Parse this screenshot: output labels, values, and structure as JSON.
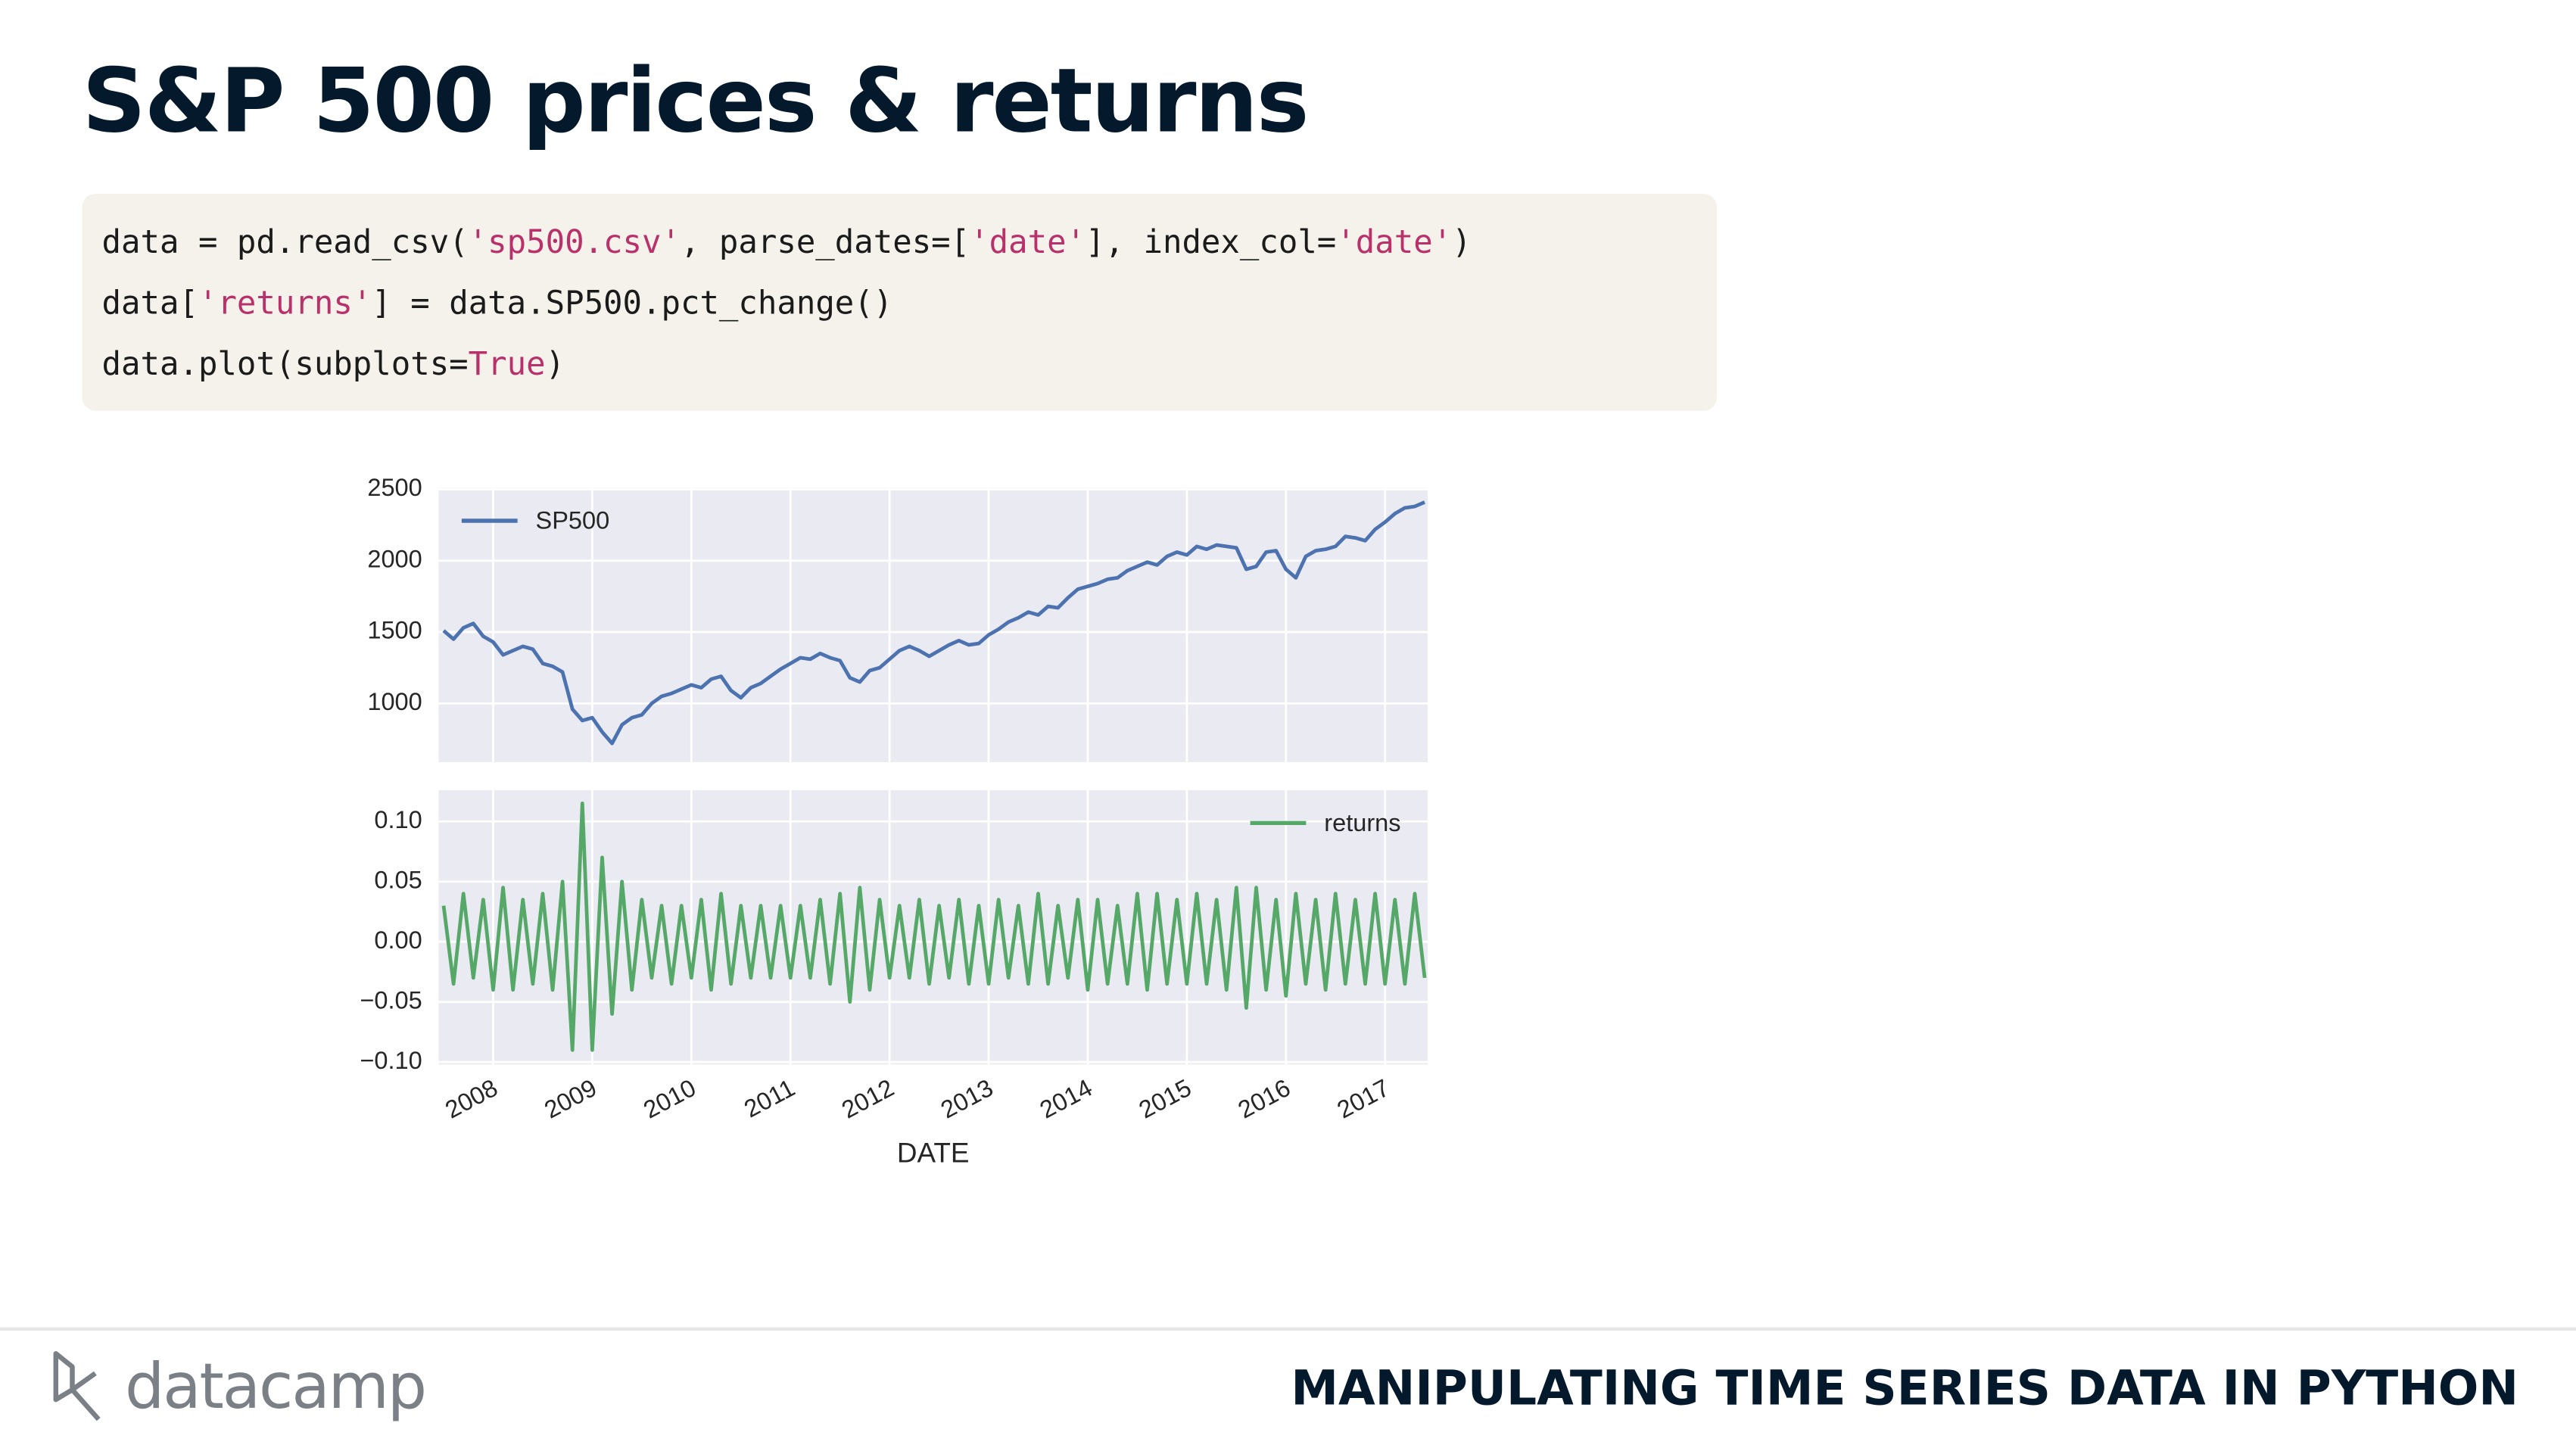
{
  "header": {
    "title": "S&P 500 prices & returns"
  },
  "code": {
    "lines": [
      [
        {
          "text": "data = pd.read_csv(",
          "color": "#1b1b1b"
        },
        {
          "text": "'sp500.csv'",
          "color": "#b8316a"
        },
        {
          "text": ", parse_dates=[",
          "color": "#1b1b1b"
        },
        {
          "text": "'date'",
          "color": "#b8316a"
        },
        {
          "text": "], index_col=",
          "color": "#1b1b1b"
        },
        {
          "text": "'date'",
          "color": "#b8316a"
        },
        {
          "text": ")",
          "color": "#1b1b1b"
        }
      ],
      [
        {
          "text": "data[",
          "color": "#1b1b1b"
        },
        {
          "text": "'returns'",
          "color": "#b8316a"
        },
        {
          "text": "] = data.SP500.pct_change()",
          "color": "#1b1b1b"
        }
      ],
      [
        {
          "text": "data.plot(subplots=",
          "color": "#1b1b1b"
        },
        {
          "text": "True",
          "color": "#b8316a"
        },
        {
          "text": ")",
          "color": "#1b1b1b"
        }
      ]
    ]
  },
  "chart_data": [
    {
      "type": "line",
      "legend": "upper left",
      "grid": true,
      "background": "#eaeaf2",
      "xtick_labels": false,
      "xlim": [
        2007.45,
        2017.43
      ],
      "xticks": [
        2008,
        2009,
        2010,
        2011,
        2012,
        2013,
        2014,
        2015,
        2016,
        2017
      ],
      "ylim": [
        588,
        2510
      ],
      "yticks": [
        1000,
        1500,
        2000,
        2500
      ],
      "x": [
        2007.5,
        2007.6,
        2007.7,
        2007.8,
        2007.9,
        2008.0,
        2008.1,
        2008.2,
        2008.3,
        2008.4,
        2008.5,
        2008.6,
        2008.7,
        2008.8,
        2008.9,
        2009.0,
        2009.1,
        2009.2,
        2009.3,
        2009.4,
        2009.5,
        2009.6,
        2009.7,
        2009.8,
        2009.9,
        2010.0,
        2010.1,
        2010.2,
        2010.3,
        2010.4,
        2010.5,
        2010.6,
        2010.7,
        2010.8,
        2010.9,
        2011.0,
        2011.1,
        2011.2,
        2011.3,
        2011.4,
        2011.5,
        2011.6,
        2011.7,
        2011.8,
        2011.9,
        2012.0,
        2012.1,
        2012.2,
        2012.3,
        2012.4,
        2012.5,
        2012.6,
        2012.7,
        2012.8,
        2012.9,
        2013.0,
        2013.1,
        2013.2,
        2013.3,
        2013.4,
        2013.5,
        2013.6,
        2013.7,
        2013.8,
        2013.9,
        2014.0,
        2014.1,
        2014.2,
        2014.3,
        2014.4,
        2014.5,
        2014.6,
        2014.7,
        2014.8,
        2014.9,
        2015.0,
        2015.1,
        2015.2,
        2015.3,
        2015.4,
        2015.5,
        2015.6,
        2015.7,
        2015.8,
        2015.9,
        2016.0,
        2016.1,
        2016.2,
        2016.3,
        2016.4,
        2016.5,
        2016.6,
        2016.7,
        2016.8,
        2016.9,
        2017.0,
        2017.1,
        2017.2,
        2017.3,
        2017.4
      ],
      "series": [
        {
          "name": "SP500",
          "color": "#4c72b0",
          "values": [
            1510,
            1450,
            1530,
            1560,
            1470,
            1430,
            1340,
            1370,
            1400,
            1380,
            1280,
            1260,
            1220,
            960,
            880,
            900,
            800,
            720,
            850,
            900,
            920,
            1000,
            1050,
            1070,
            1100,
            1130,
            1110,
            1170,
            1190,
            1090,
            1040,
            1110,
            1140,
            1190,
            1240,
            1280,
            1320,
            1310,
            1350,
            1320,
            1300,
            1180,
            1150,
            1230,
            1250,
            1310,
            1370,
            1400,
            1370,
            1330,
            1370,
            1410,
            1440,
            1410,
            1420,
            1480,
            1520,
            1570,
            1600,
            1640,
            1620,
            1680,
            1670,
            1740,
            1800,
            1820,
            1840,
            1870,
            1880,
            1930,
            1960,
            1990,
            1970,
            2030,
            2060,
            2040,
            2100,
            2080,
            2110,
            2100,
            2090,
            1940,
            1960,
            2060,
            2070,
            1940,
            1880,
            2030,
            2070,
            2080,
            2100,
            2170,
            2160,
            2140,
            2220,
            2270,
            2330,
            2370,
            2380,
            2410
          ]
        }
      ]
    },
    {
      "type": "line",
      "legend": "upper right",
      "grid": true,
      "background": "#eaeaf2",
      "xtick_labels": true,
      "xlabel": "DATE",
      "xlim": [
        2007.45,
        2017.43
      ],
      "xticks": [
        2008,
        2009,
        2010,
        2011,
        2012,
        2013,
        2014,
        2015,
        2016,
        2017
      ],
      "ylim": [
        -0.102,
        0.126
      ],
      "yticks": [
        {
          "value": -0.1,
          "label": "−0.10"
        },
        {
          "value": -0.05,
          "label": "−0.05"
        },
        {
          "value": 0,
          "label": "0.00"
        },
        {
          "value": 0.05,
          "label": "0.05"
        },
        {
          "value": 0.1,
          "label": "0.10"
        }
      ],
      "x": [
        2007.5,
        2007.6,
        2007.7,
        2007.8,
        2007.9,
        2008.0,
        2008.1,
        2008.2,
        2008.3,
        2008.4,
        2008.5,
        2008.6,
        2008.7,
        2008.8,
        2008.9,
        2009.0,
        2009.1,
        2009.2,
        2009.3,
        2009.4,
        2009.5,
        2009.6,
        2009.7,
        2009.8,
        2009.9,
        2010.0,
        2010.1,
        2010.2,
        2010.3,
        2010.4,
        2010.5,
        2010.6,
        2010.7,
        2010.8,
        2010.9,
        2011.0,
        2011.1,
        2011.2,
        2011.3,
        2011.4,
        2011.5,
        2011.6,
        2011.7,
        2011.8,
        2011.9,
        2012.0,
        2012.1,
        2012.2,
        2012.3,
        2012.4,
        2012.5,
        2012.6,
        2012.7,
        2012.8,
        2012.9,
        2013.0,
        2013.1,
        2013.2,
        2013.3,
        2013.4,
        2013.5,
        2013.6,
        2013.7,
        2013.8,
        2013.9,
        2014.0,
        2014.1,
        2014.2,
        2014.3,
        2014.4,
        2014.5,
        2014.6,
        2014.7,
        2014.8,
        2014.9,
        2015.0,
        2015.1,
        2015.2,
        2015.3,
        2015.4,
        2015.5,
        2015.6,
        2015.7,
        2015.8,
        2015.9,
        2016.0,
        2016.1,
        2016.2,
        2016.3,
        2016.4,
        2016.5,
        2016.6,
        2016.7,
        2016.8,
        2016.9,
        2017.0,
        2017.1,
        2017.2,
        2017.3,
        2017.4
      ],
      "series": [
        {
          "name": "returns",
          "color": "#55a868",
          "values": [
            0.03,
            -0.035,
            0.04,
            -0.03,
            0.035,
            -0.04,
            0.045,
            -0.04,
            0.035,
            -0.035,
            0.04,
            -0.04,
            0.05,
            -0.09,
            0.115,
            -0.09,
            0.07,
            -0.06,
            0.05,
            -0.04,
            0.035,
            -0.03,
            0.03,
            -0.035,
            0.03,
            -0.03,
            0.035,
            -0.04,
            0.04,
            -0.035,
            0.03,
            -0.03,
            0.03,
            -0.03,
            0.03,
            -0.03,
            0.03,
            -0.03,
            0.035,
            -0.035,
            0.04,
            -0.05,
            0.045,
            -0.04,
            0.035,
            -0.03,
            0.03,
            -0.03,
            0.035,
            -0.035,
            0.03,
            -0.03,
            0.035,
            -0.035,
            0.03,
            -0.035,
            0.035,
            -0.03,
            0.03,
            -0.035,
            0.04,
            -0.035,
            0.03,
            -0.03,
            0.035,
            -0.04,
            0.035,
            -0.035,
            0.03,
            -0.035,
            0.04,
            -0.04,
            0.04,
            -0.035,
            0.035,
            -0.035,
            0.04,
            -0.035,
            0.035,
            -0.04,
            0.045,
            -0.055,
            0.045,
            -0.04,
            0.035,
            -0.045,
            0.04,
            -0.035,
            0.035,
            -0.04,
            0.04,
            -0.035,
            0.035,
            -0.035,
            0.04,
            -0.035,
            0.035,
            -0.035,
            0.04,
            -0.03
          ]
        }
      ]
    }
  ],
  "footer": {
    "brand": "datacamp",
    "course": "MANIPULATING TIME SERIES DATA IN PYTHON"
  }
}
